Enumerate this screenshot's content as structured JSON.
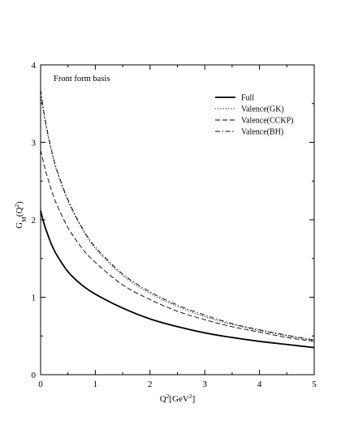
{
  "chart_data": {
    "type": "line",
    "annotation": "Front form basis",
    "xlabel_parts": [
      "Q",
      "2",
      "[GeV",
      "2",
      "]"
    ],
    "ylabel_parts": [
      "G",
      "M",
      "(Q",
      "2",
      ")"
    ],
    "xlim": [
      0,
      5
    ],
    "ylim": [
      0,
      4
    ],
    "x_ticks": [
      0,
      1,
      2,
      3,
      4,
      5
    ],
    "y_ticks": [
      0,
      1,
      2,
      3,
      4
    ],
    "grid": false,
    "legend_position": "top-right",
    "x": [
      0,
      0.05,
      0.1,
      0.2,
      0.3,
      0.5,
      0.75,
      1.0,
      1.5,
      2.0,
      2.5,
      3.0,
      3.5,
      4.0,
      4.5,
      5.0
    ],
    "series": [
      {
        "name": "Full",
        "dash": "solid",
        "values": [
          2.12,
          1.98,
          1.87,
          1.68,
          1.54,
          1.33,
          1.16,
          1.04,
          0.86,
          0.72,
          0.62,
          0.54,
          0.48,
          0.43,
          0.39,
          0.35
        ]
      },
      {
        "name": "Valence(GK)",
        "dash": "dotted",
        "values": [
          3.62,
          3.4,
          3.2,
          2.88,
          2.62,
          2.24,
          1.89,
          1.63,
          1.28,
          1.05,
          0.88,
          0.75,
          0.65,
          0.57,
          0.5,
          0.44
        ]
      },
      {
        "name": "Valence(CCKP)",
        "dash": "dashed",
        "values": [
          2.9,
          2.75,
          2.61,
          2.38,
          2.19,
          1.9,
          1.64,
          1.45,
          1.16,
          0.97,
          0.82,
          0.71,
          0.62,
          0.55,
          0.48,
          0.43
        ]
      },
      {
        "name": "Valence(BH)",
        "dash": "dashdot",
        "values": [
          3.68,
          3.44,
          3.23,
          2.9,
          2.64,
          2.26,
          1.91,
          1.65,
          1.3,
          1.07,
          0.9,
          0.77,
          0.66,
          0.58,
          0.51,
          0.45
        ]
      }
    ]
  }
}
